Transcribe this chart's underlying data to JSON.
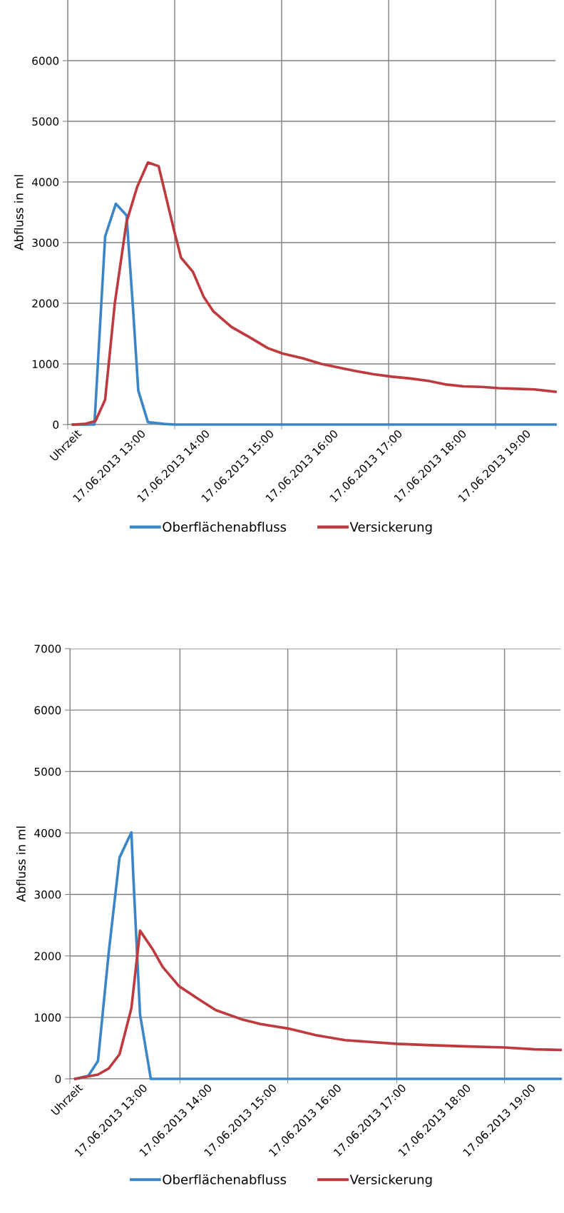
{
  "chart_data": [
    {
      "type": "line",
      "ylabel": "Abfluss in ml",
      "xlim": [
        "2013-06-17T11:52",
        "2013-06-17T19:28"
      ],
      "ylim": [
        0,
        7000
      ],
      "yticks": [
        0,
        1000,
        2000,
        3000,
        4000,
        5000,
        6000
      ],
      "xticks": [
        {
          "value": "2013-06-17T12:00",
          "label": "Uhrzeit"
        },
        {
          "value": "2013-06-17T13:00",
          "label": "17.06.2013 13:00"
        },
        {
          "value": "2013-06-17T14:00",
          "label": "17.06.2013 14:00"
        },
        {
          "value": "2013-06-17T15:00",
          "label": "17.06.2013 15:00"
        },
        {
          "value": "2013-06-17T16:00",
          "label": "17.06.2013 16:00"
        },
        {
          "value": "2013-06-17T17:00",
          "label": "17.06.2013 17:00"
        },
        {
          "value": "2013-06-17T18:00",
          "label": "17.06.2013 18:00"
        },
        {
          "value": "2013-06-17T19:00",
          "label": "17.06.2013 19:00"
        },
        {
          "value": "2013-06-17T11:52",
          "label": null
        },
        {
          "value": "2013-06-17T13:32",
          "label": null
        },
        {
          "value": "2013-06-17T15:12",
          "label": null
        },
        {
          "value": "2013-06-17T16:52",
          "label": null
        },
        {
          "value": "2013-06-17T18:32",
          "label": null
        }
      ],
      "grid": true,
      "legend": "bottom",
      "series": [
        {
          "name": "Oberflächenabfluss",
          "color": "#3a86c6",
          "x": [
            "2013-06-17T11:57",
            "2013-06-17T12:08",
            "2013-06-17T12:17",
            "2013-06-17T12:27",
            "2013-06-17T12:37",
            "2013-06-17T12:47",
            "2013-06-17T12:53",
            "2013-06-17T12:58",
            "2013-06-17T13:07",
            "2013-06-17T13:22",
            "2013-06-17T13:32",
            "2013-06-17T19:28"
          ],
          "values": [
            0,
            0,
            0,
            3100,
            3640,
            3450,
            1930,
            560,
            40,
            10,
            0,
            0
          ]
        },
        {
          "name": "Versickerung",
          "color": "#be3a3e",
          "x": [
            "2013-06-17T11:57",
            "2013-06-17T12:08",
            "2013-06-17T12:18",
            "2013-06-17T12:27",
            "2013-06-17T12:36",
            "2013-06-17T12:47",
            "2013-06-17T12:57",
            "2013-06-17T13:07",
            "2013-06-17T13:17",
            "2013-06-17T13:32",
            "2013-06-17T13:38",
            "2013-06-17T13:49",
            "2013-06-17T13:59",
            "2013-06-17T14:08",
            "2013-06-17T14:25",
            "2013-06-17T14:42",
            "2013-06-17T14:59",
            "2013-06-17T15:13",
            "2013-06-17T15:32",
            "2013-06-17T15:49",
            "2013-06-17T16:05",
            "2013-06-17T16:22",
            "2013-06-17T16:38",
            "2013-06-17T16:55",
            "2013-06-17T17:12",
            "2013-06-17T17:29",
            "2013-06-17T17:46",
            "2013-06-17T18:02",
            "2013-06-17T18:19",
            "2013-06-17T18:35",
            "2013-06-17T18:52",
            "2013-06-17T19:08",
            "2013-06-17T19:28"
          ],
          "values": [
            0,
            10,
            60,
            410,
            1990,
            3340,
            3920,
            4320,
            4260,
            3160,
            2750,
            2520,
            2110,
            1870,
            1610,
            1440,
            1260,
            1170,
            1090,
            1000,
            940,
            880,
            830,
            790,
            760,
            720,
            660,
            630,
            620,
            600,
            590,
            580,
            540
          ]
        }
      ]
    },
    {
      "type": "line",
      "ylabel": "Abfluss in ml",
      "xlim": [
        "2013-06-17T11:53",
        "2013-06-17T19:28"
      ],
      "ylim": [
        0,
        7000
      ],
      "yticks": [
        0,
        1000,
        2000,
        3000,
        4000,
        5000,
        6000,
        7000
      ],
      "xticks": [
        {
          "value": "2013-06-17T12:00",
          "label": "Uhrzeit"
        },
        {
          "value": "2013-06-17T13:00",
          "label": "17.06.2013 13:00"
        },
        {
          "value": "2013-06-17T14:00",
          "label": "17.06.2013 14:00"
        },
        {
          "value": "2013-06-17T15:00",
          "label": "17.06.2013 15:00"
        },
        {
          "value": "2013-06-17T16:00",
          "label": "17.06.2013 16:00"
        },
        {
          "value": "2013-06-17T17:00",
          "label": "17.06.2013 17:00"
        },
        {
          "value": "2013-06-17T18:00",
          "label": "17.06.2013 18:00"
        },
        {
          "value": "2013-06-17T19:00",
          "label": "17.06.2013 19:00"
        },
        {
          "value": "2013-06-17T11:53",
          "label": null
        },
        {
          "value": "2013-06-17T13:35",
          "label": null
        },
        {
          "value": "2013-06-17T15:15",
          "label": null
        },
        {
          "value": "2013-06-17T16:56",
          "label": null
        },
        {
          "value": "2013-06-17T18:36",
          "label": null
        }
      ],
      "grid": true,
      "legend": "bottom",
      "series": [
        {
          "name": "Oberflächenabfluss",
          "color": "#3a86c6",
          "x": [
            "2013-06-17T11:58",
            "2013-06-17T12:10",
            "2013-06-17T12:19",
            "2013-06-17T12:29",
            "2013-06-17T12:39",
            "2013-06-17T12:50",
            "2013-06-17T12:52",
            "2013-06-17T12:58",
            "2013-06-17T13:08",
            "2013-06-17T19:28"
          ],
          "values": [
            0,
            50,
            290,
            2060,
            3600,
            4010,
            3210,
            1050,
            0,
            0
          ]
        },
        {
          "name": "Versickerung",
          "color": "#be3a3e",
          "x": [
            "2013-06-17T11:58",
            "2013-06-17T12:19",
            "2013-06-17T12:29",
            "2013-06-17T12:39",
            "2013-06-17T12:50",
            "2013-06-17T12:58",
            "2013-06-17T13:10",
            "2013-06-17T13:19",
            "2013-06-17T13:34",
            "2013-06-17T13:52",
            "2013-06-17T14:08",
            "2013-06-17T14:32",
            "2013-06-17T14:50",
            "2013-06-17T15:15",
            "2013-06-17T15:41",
            "2013-06-17T16:08",
            "2013-06-17T16:56",
            "2013-06-17T17:24",
            "2013-06-17T17:58",
            "2013-06-17T18:36",
            "2013-06-17T19:04",
            "2013-06-17T19:28"
          ],
          "values": [
            0,
            70,
            170,
            400,
            1150,
            2410,
            2100,
            1820,
            1510,
            1300,
            1120,
            970,
            890,
            820,
            710,
            630,
            570,
            550,
            530,
            510,
            480,
            470
          ]
        }
      ]
    }
  ]
}
